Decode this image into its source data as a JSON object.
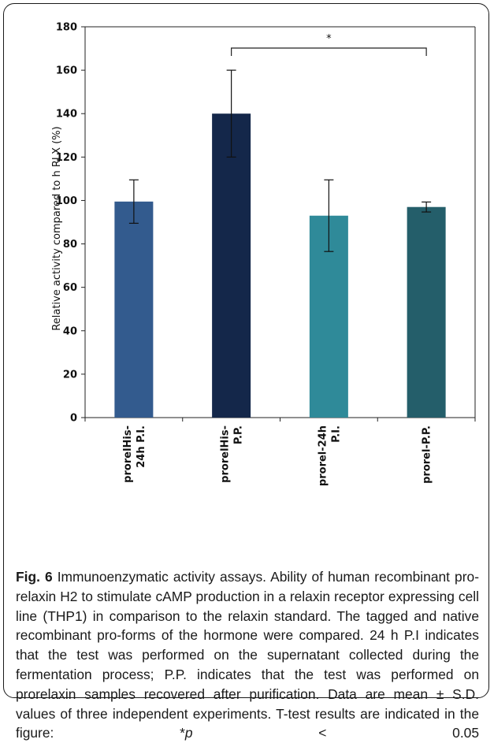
{
  "chart_data": {
    "type": "bar",
    "categories": [
      "prorelHis-\n24h P.I.",
      "prorelHis-\nP.P.",
      "prorel-24h\nP.I.",
      "prorel-P.P."
    ],
    "values": [
      99.5,
      140,
      93,
      97
    ],
    "errors": [
      10,
      20,
      16.5,
      2.3
    ],
    "colors": [
      "#335b8e",
      "#14274a",
      "#2f8a99",
      "#245e6a"
    ],
    "ylabel": "Relative activity compared to h RLX (%)",
    "ylim": [
      0,
      180
    ],
    "yticks": [
      0,
      20,
      40,
      60,
      80,
      100,
      120,
      140,
      160,
      180
    ],
    "grid": false,
    "annotation": {
      "text": "*",
      "from_category": 1,
      "to_category": 3
    }
  },
  "caption": {
    "fig_label": "Fig. 6",
    "text_before_p": " Immunoenzymatic activity assays. Ability of human recombinant pro-relaxin H2 to stimulate cAMP production in a relaxin receptor expressing cell line (THP1) in comparison to the relaxin standard. The tagged and native recombinant pro-forms of the hormone were compared. 24 h P.I indicates that the test was performed on the supernatant collected during the fermentation process; P.P. indicates that the test was performed on prorelaxin samples recovered after purification. Data are mean ± S.D. values of three independent experiments. T-test results are indicated in the figure: *",
    "p_symbol": "p",
    "text_after_p": " < 0.05"
  }
}
